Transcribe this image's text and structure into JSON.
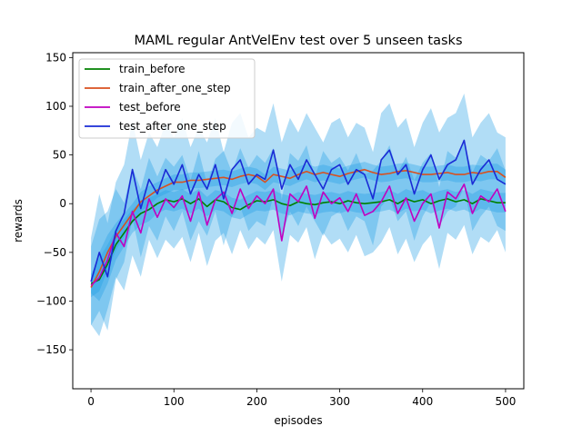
{
  "chart_data": {
    "type": "line",
    "title": "MAML regular AntVelEnv test over 5 unseen tasks",
    "xlabel": "episodes",
    "ylabel": "rewards",
    "xlim": [
      -22,
      522
    ],
    "ylim": [
      -190,
      155
    ],
    "xticks": [
      0,
      100,
      200,
      300,
      400,
      500
    ],
    "yticks": [
      -150,
      -100,
      -50,
      0,
      50,
      100,
      150
    ],
    "xtick_labels": [
      "0",
      "100",
      "200",
      "300",
      "400",
      "500"
    ],
    "ytick_labels": [
      "−150",
      "−100",
      "−50",
      "0",
      "50",
      "100",
      "150"
    ],
    "grid": false,
    "legend_position": "upper-left",
    "band_color": "#1f9fe6",
    "x": [
      0,
      10,
      20,
      30,
      40,
      50,
      60,
      70,
      80,
      90,
      100,
      110,
      120,
      130,
      140,
      150,
      160,
      170,
      180,
      190,
      200,
      210,
      220,
      230,
      240,
      250,
      260,
      270,
      280,
      290,
      300,
      310,
      320,
      330,
      340,
      350,
      360,
      370,
      380,
      390,
      400,
      410,
      420,
      430,
      440,
      450,
      460,
      470,
      480,
      490,
      500
    ],
    "series": [
      {
        "name": "train_before",
        "color": "#008000",
        "values": [
          -82,
          -78,
          -62,
          -42,
          -30,
          -18,
          -10,
          -6,
          0,
          4,
          2,
          5,
          0,
          5,
          -3,
          4,
          2,
          -4,
          -6,
          -1,
          3,
          2,
          4,
          0,
          -2,
          2,
          0,
          -1,
          1,
          2,
          0,
          3,
          1,
          0,
          1,
          2,
          4,
          0,
          5,
          2,
          4,
          0,
          3,
          5,
          2,
          4,
          0,
          5,
          3,
          1,
          1
        ],
        "band": [
          10,
          22,
          20,
          16,
          14,
          12,
          12,
          12,
          10,
          10,
          10,
          10,
          10,
          10,
          10,
          10,
          10,
          10,
          10,
          10,
          10,
          10,
          10,
          10,
          10,
          10,
          10,
          10,
          10,
          10,
          10,
          10,
          10,
          10,
          10,
          10,
          10,
          10,
          10,
          10,
          10,
          10,
          10,
          10,
          10,
          10,
          10,
          10,
          10,
          10,
          10
        ]
      },
      {
        "name": "train_after_one_step",
        "color": "#d9501e",
        "values": [
          -86,
          -70,
          -50,
          -34,
          -22,
          -10,
          2,
          8,
          14,
          18,
          22,
          22,
          24,
          24,
          25,
          26,
          27,
          25,
          28,
          30,
          28,
          22,
          30,
          28,
          26,
          30,
          33,
          30,
          32,
          30,
          28,
          31,
          33,
          35,
          32,
          30,
          31,
          33,
          34,
          32,
          30,
          30,
          31,
          32,
          30,
          30,
          32,
          31,
          33,
          33,
          27
        ],
        "band": [
          10,
          20,
          18,
          14,
          12,
          10,
          10,
          10,
          8,
          8,
          8,
          8,
          8,
          8,
          8,
          8,
          8,
          8,
          8,
          8,
          8,
          8,
          8,
          8,
          8,
          8,
          8,
          8,
          8,
          8,
          8,
          8,
          8,
          8,
          8,
          8,
          8,
          8,
          8,
          8,
          8,
          8,
          8,
          8,
          8,
          8,
          8,
          8,
          8,
          8,
          8
        ]
      },
      {
        "name": "test_before",
        "color": "#c000c0",
        "values": [
          -84,
          -76,
          -58,
          -30,
          -44,
          -8,
          -30,
          5,
          -14,
          5,
          -4,
          8,
          -18,
          12,
          -22,
          4,
          12,
          -10,
          15,
          -5,
          8,
          0,
          15,
          -38,
          10,
          2,
          18,
          -15,
          12,
          0,
          6,
          -8,
          10,
          -12,
          -8,
          2,
          18,
          -10,
          6,
          -18,
          0,
          10,
          -25,
          12,
          5,
          20,
          -10,
          8,
          2,
          15,
          -8
        ],
        "band": [
          40,
          60,
          50,
          45,
          45,
          45,
          45,
          42,
          42,
          42,
          42,
          42,
          42,
          42,
          42,
          42,
          42,
          42,
          42,
          42,
          42,
          42,
          42,
          42,
          42,
          42,
          42,
          42,
          42,
          42,
          42,
          42,
          42,
          42,
          42,
          42,
          42,
          42,
          42,
          42,
          42,
          42,
          42,
          42,
          42,
          42,
          42,
          42,
          42,
          42,
          42
        ]
      },
      {
        "name": "test_after_one_step",
        "color": "#1a2bd6",
        "values": [
          -80,
          -50,
          -75,
          -28,
          -10,
          35,
          -5,
          25,
          10,
          35,
          20,
          40,
          10,
          30,
          15,
          40,
          5,
          35,
          45,
          20,
          30,
          25,
          55,
          15,
          40,
          25,
          45,
          30,
          15,
          35,
          40,
          20,
          35,
          30,
          5,
          45,
          55,
          30,
          40,
          10,
          35,
          50,
          25,
          40,
          45,
          65,
          20,
          35,
          45,
          25,
          20
        ],
        "band": [
          45,
          60,
          55,
          50,
          50,
          50,
          50,
          48,
          48,
          48,
          48,
          48,
          48,
          48,
          48,
          48,
          48,
          48,
          48,
          48,
          48,
          48,
          48,
          48,
          48,
          48,
          48,
          48,
          48,
          48,
          48,
          48,
          48,
          48,
          48,
          48,
          48,
          48,
          48,
          48,
          48,
          48,
          48,
          48,
          48,
          48,
          48,
          48,
          48,
          48,
          48
        ]
      }
    ]
  }
}
